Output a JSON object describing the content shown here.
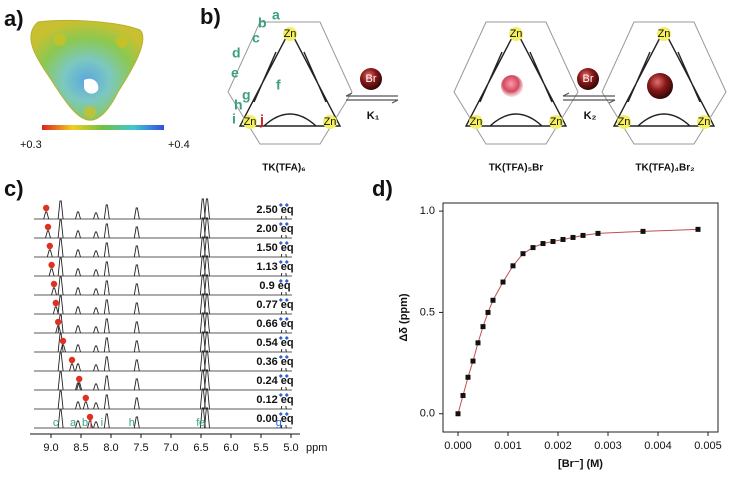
{
  "panel_a": {
    "label": "a)",
    "scale_min": "+0.3",
    "scale_max": "+0.4"
  },
  "panel_b": {
    "label": "b)",
    "atom": "Zn",
    "guest": "Br",
    "site_labels": [
      "a",
      "b",
      "c",
      "d",
      "e",
      "f",
      "g",
      "h",
      "i",
      "j"
    ],
    "k1": "K₁",
    "k2": "K₂",
    "species": [
      "TK(TFA)₆",
      "TK(TFA)₅Br",
      "TK(TFA)₄Br₂"
    ]
  },
  "panel_c": {
    "label": "c)",
    "xlim": [
      9.35,
      4.85
    ],
    "xticks": [
      {
        "value": 9.0,
        "label": "9.0"
      },
      8.5,
      {
        "value": 8.0,
        "label": "8.0"
      },
      7.5,
      {
        "value": 7.0,
        "label": "7.0"
      },
      6.5,
      {
        "value": 6.0,
        "label": "6.0"
      },
      5.5,
      {
        "value": 5.0,
        "label": "5.0"
      }
    ],
    "x_unit": "ppm",
    "peaks": [
      {
        "name": "c",
        "ppm": 8.84
      },
      {
        "name": "a",
        "ppm": 8.55
      },
      {
        "name": "j",
        "ppm": 8.25
      },
      {
        "name": "i",
        "ppm": 8.07
      },
      {
        "name": "h",
        "ppm": 7.57
      },
      {
        "name": "f",
        "ppm": 6.47
      },
      {
        "name": "e",
        "ppm": 6.4
      },
      {
        "name": "g",
        "ppm": 5.12
      }
    ],
    "moving_peak": "b",
    "spectra": [
      {
        "label": "2.50 eq",
        "shift": 9.08
      },
      {
        "label": "2.00 eq",
        "shift": 9.05
      },
      {
        "label": "1.50 eq",
        "shift": 9.02
      },
      {
        "label": "1.13 eq",
        "shift": 8.99
      },
      {
        "label": "0.9 eq",
        "shift": 8.95
      },
      {
        "label": "0.77 eq",
        "shift": 8.92
      },
      {
        "label": "0.66 eq",
        "shift": 8.88
      },
      {
        "label": "0.54 eq",
        "shift": 8.8
      },
      {
        "label": "0.36 eq",
        "shift": 8.65
      },
      {
        "label": "0.24 eq",
        "shift": 8.53
      },
      {
        "label": "0.12 eq",
        "shift": 8.42
      },
      {
        "label": "0.00 eq",
        "shift": 8.35
      }
    ]
  },
  "chart_data": {
    "type": "scatter",
    "panel_label": "d)",
    "x_label": "[Br⁻] (M)",
    "y_label": "Δδ (ppm)",
    "x": [
      0,
      0.0001,
      0.0002,
      0.0003,
      0.0004,
      0.0005,
      0.0006,
      0.0007,
      0.0009,
      0.0011,
      0.0013,
      0.0015,
      0.0017,
      0.0019,
      0.0021,
      0.0023,
      0.0025,
      0.0028,
      0.0037,
      0.0048
    ],
    "values": [
      0,
      0.09,
      0.18,
      0.26,
      0.35,
      0.43,
      0.5,
      0.56,
      0.65,
      0.73,
      0.79,
      0.82,
      0.84,
      0.85,
      0.86,
      0.87,
      0.88,
      0.89,
      0.9,
      0.91
    ],
    "color": "#111111",
    "fit_color": "#c0504d",
    "xlim": [
      -0.0003,
      0.0052
    ],
    "ylim": [
      -0.09,
      1.04
    ],
    "xticks": [
      {
        "value": 0,
        "label": "0.000"
      },
      {
        "value": 0.001,
        "label": "0.001"
      },
      {
        "value": 0.002,
        "label": "0.002"
      },
      {
        "value": 0.003,
        "label": "0.003"
      },
      {
        "value": 0.004,
        "label": "0.004"
      },
      {
        "value": 0.005,
        "label": "0.005"
      }
    ],
    "yticks": [
      {
        "value": 0,
        "label": "0.0"
      },
      0.5,
      {
        "value": 1,
        "label": "1.0"
      }
    ]
  }
}
